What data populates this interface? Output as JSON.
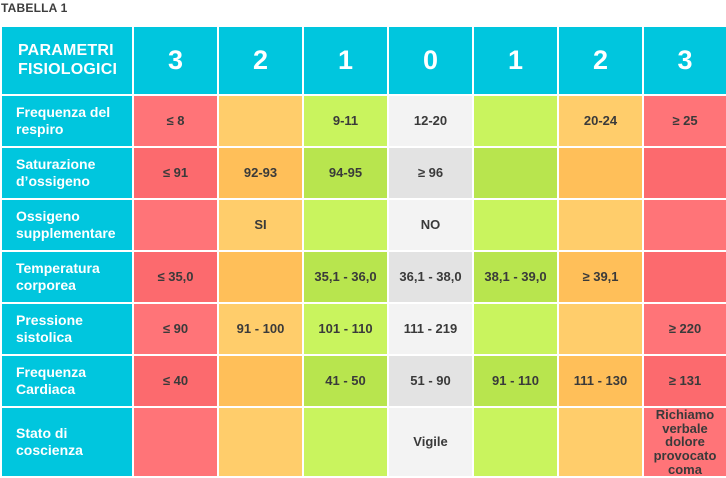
{
  "caption": "TABELLA 1",
  "header": {
    "label": "PARAMETRI FISIOLOGICI",
    "scores": [
      "3",
      "2",
      "1",
      "0",
      "1",
      "2",
      "3"
    ]
  },
  "rows": [
    {
      "label": "Frequenza del respiro",
      "cells": [
        "≤ 8",
        "",
        "9-11",
        "12-20",
        "",
        "20-24",
        "≥ 25"
      ]
    },
    {
      "label": "Saturazione d’ossigeno",
      "cells": [
        "≤ 91",
        "92-93",
        "94-95",
        "≥ 96",
        "",
        "",
        ""
      ]
    },
    {
      "label": "Ossigeno supplementare",
      "cells": [
        "",
        "SI",
        "",
        "NO",
        "",
        "",
        ""
      ]
    },
    {
      "label": "Temperatura corporea",
      "cells": [
        "≤ 35,0",
        "",
        "35,1 - 36,0",
        "36,1 - 38,0",
        "38,1 - 39,0",
        "≥ 39,1",
        ""
      ]
    },
    {
      "label": "Pressione sistolica",
      "cells": [
        "≤ 90",
        "91 - 100",
        "101 - 110",
        "111 - 219",
        "",
        "",
        "≥ 220"
      ]
    },
    {
      "label": "Frequenza Cardiaca",
      "cells": [
        "≤ 40",
        "",
        "41 - 50",
        "51 - 90",
        "91 - 110",
        "111 - 130",
        "≥ 131"
      ]
    },
    {
      "label": "Stato di coscienza",
      "cells": [
        "",
        "",
        "",
        "Vigile",
        "",
        "",
        "Richiamo verbale dolore provocato coma"
      ]
    }
  ],
  "colors": {
    "header": "#00c6de",
    "score3": "#ff7478",
    "score2": "#ffcd6b",
    "score1": "#c9f45e",
    "score0": "#f3f3f3"
  }
}
